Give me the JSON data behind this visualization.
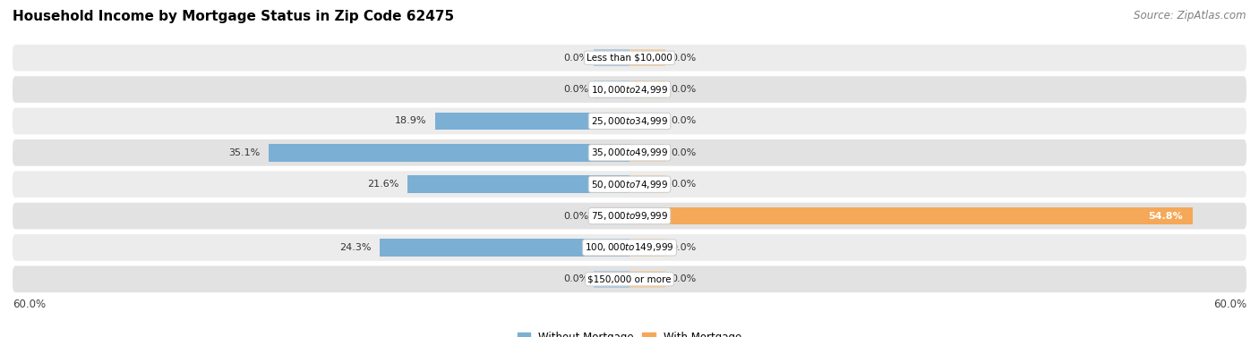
{
  "title": "Household Income by Mortgage Status in Zip Code 62475",
  "source": "Source: ZipAtlas.com",
  "categories": [
    "Less than $10,000",
    "$10,000 to $24,999",
    "$25,000 to $34,999",
    "$35,000 to $49,999",
    "$50,000 to $74,999",
    "$75,000 to $99,999",
    "$100,000 to $149,999",
    "$150,000 or more"
  ],
  "without_mortgage": [
    0.0,
    0.0,
    18.9,
    35.1,
    21.6,
    0.0,
    24.3,
    0.0
  ],
  "with_mortgage": [
    0.0,
    0.0,
    0.0,
    0.0,
    0.0,
    54.8,
    0.0,
    0.0
  ],
  "color_without": "#7bafd4",
  "color_with": "#f5a857",
  "color_without_zero": "#adc8e0",
  "color_with_zero": "#f5d0a0",
  "xlim": 60.0,
  "zero_stub": 3.5,
  "title_fontsize": 11,
  "source_fontsize": 8.5,
  "bar_label_fontsize": 8,
  "cat_label_fontsize": 7.5,
  "row_colors": [
    "#ececec",
    "#e2e2e2"
  ]
}
